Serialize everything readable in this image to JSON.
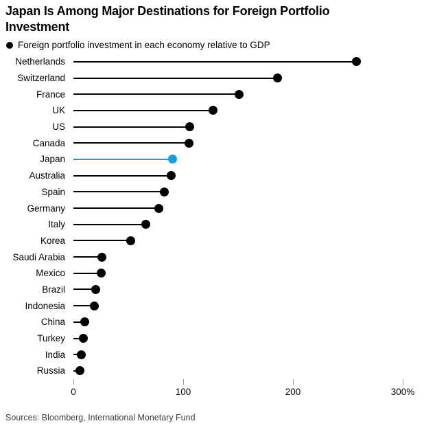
{
  "header": {
    "title": "Japan Is Among Major Destinations for Foreign Portfolio Investment",
    "legend": "Foreign portfolio investment in each economy relative to GDP"
  },
  "footer": {
    "source": "Sources: Bloomberg, International Monetary Fund"
  },
  "colors": {
    "series_default": "#000000",
    "series_highlight": "#149fe4",
    "tick_mark": "#9b9b9b",
    "source_text": "#3d3d3d"
  },
  "chart_data": {
    "type": "bar",
    "variant": "horizontal-lollipop",
    "title": "Japan Is Among Major Destinations for Foreign Portfolio Investment",
    "subtitle_legend": "Foreign portfolio investment in each economy relative to GDP",
    "xlabel": "",
    "ylabel": "",
    "categories": [
      "Netherlands",
      "Switzerland",
      "France",
      "UK",
      "US",
      "Canada",
      "Japan",
      "Australia",
      "Spain",
      "Germany",
      "Italy",
      "Korea",
      "Saudi Arabia",
      "Mexico",
      "Brazil",
      "Indonesia",
      "China",
      "Turkey",
      "India",
      "Russia"
    ],
    "values": [
      258,
      186,
      151,
      127,
      106,
      105,
      90,
      89,
      83,
      78,
      66,
      52,
      26,
      25,
      20,
      19,
      10,
      9,
      7,
      6
    ],
    "unit": "% of GDP",
    "highlight_category": "Japan",
    "axis": {
      "min": 0,
      "max": 300,
      "ticks": [
        0,
        100,
        200,
        300
      ],
      "tick_labels": [
        "0",
        "100",
        "200",
        "300%"
      ]
    },
    "grid": false,
    "legend_position": "top-left"
  }
}
